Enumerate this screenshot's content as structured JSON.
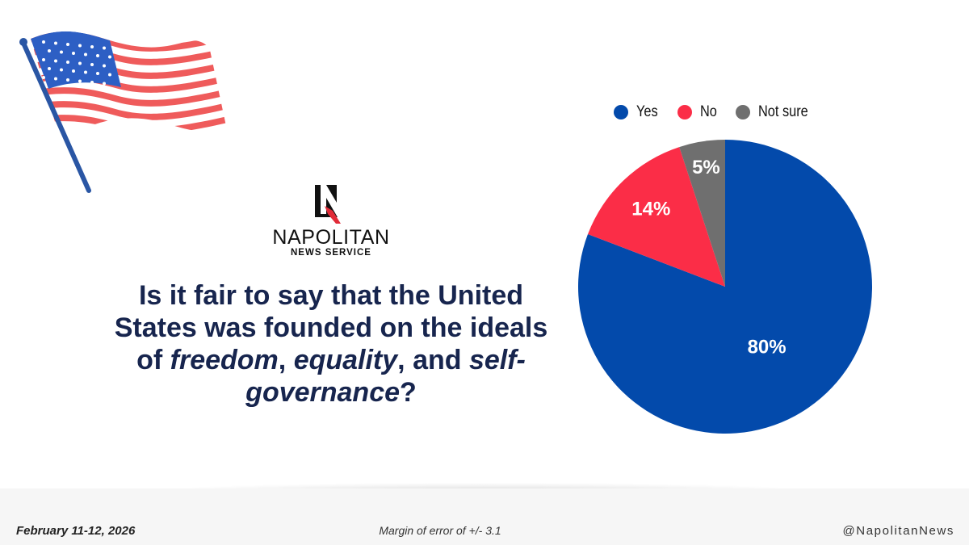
{
  "brand": {
    "name": "NAPOLITAN",
    "subtitle": "NEWS SERVICE"
  },
  "question": {
    "parts": [
      {
        "text": "Is it fair to say that the United States was founded on the ideals of ",
        "italic": false
      },
      {
        "text": "freedom",
        "italic": true
      },
      {
        "text": ", ",
        "italic": false
      },
      {
        "text": "equality",
        "italic": true
      },
      {
        "text": ", and ",
        "italic": false
      },
      {
        "text": "self-governance",
        "italic": true
      },
      {
        "text": "?",
        "italic": false
      }
    ]
  },
  "chart_data": {
    "type": "pie",
    "title": "",
    "categories": [
      "Yes",
      "No",
      "Not sure"
    ],
    "values": [
      80,
      14,
      5
    ],
    "labels": [
      "80%",
      "14%",
      "5%"
    ],
    "colors": [
      "#034aab",
      "#fb2d47",
      "#6f6f6f"
    ],
    "legend_position": "top"
  },
  "footer": {
    "date": "February 11-12, 2026",
    "margin": "Margin of error of +/- 3.1",
    "handle": "@NapolitanNews"
  },
  "colors": {
    "question_text": "#17254e",
    "flag_red": "#ef5b5b",
    "flag_blue": "#2d5fc4",
    "pole": "#2a56a4"
  },
  "icons": {
    "flag": "us-flag-icon",
    "logo": "napolitan-logo-icon"
  }
}
